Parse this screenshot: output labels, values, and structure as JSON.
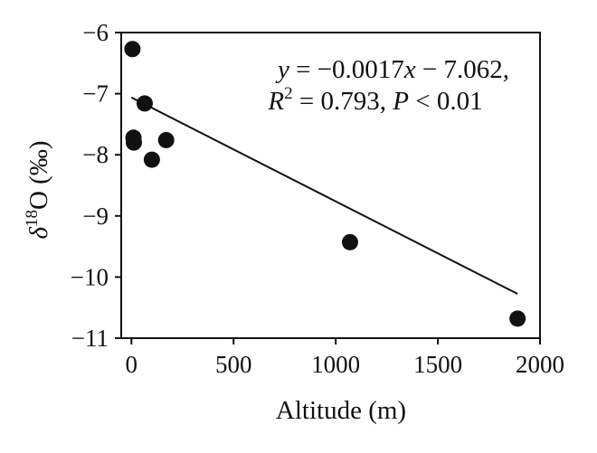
{
  "chart_data": {
    "type": "scatter",
    "xlabel": "Altitude (m)",
    "ylabel": {
      "prefix": "δ",
      "superscript": "18",
      "main": "O (‰)"
    },
    "xlim": [
      -50,
      2000
    ],
    "ylim": [
      -11,
      -6
    ],
    "xticks": [
      0,
      500,
      1000,
      1500,
      2000
    ],
    "yticks": [
      -11,
      -10,
      -9,
      -8,
      -7,
      -6
    ],
    "grid": false,
    "legend": "none",
    "points": [
      {
        "x": 5,
        "y": -6.27
      },
      {
        "x": 10,
        "y": -7.72
      },
      {
        "x": 12,
        "y": -7.8
      },
      {
        "x": 65,
        "y": -7.16
      },
      {
        "x": 100,
        "y": -8.08
      },
      {
        "x": 170,
        "y": -7.76
      },
      {
        "x": 1070,
        "y": -9.43
      },
      {
        "x": 1890,
        "y": -10.68
      }
    ],
    "fit_line": {
      "slope": -0.0017,
      "intercept": -7.062,
      "x_range": [
        0,
        1890
      ]
    },
    "annotation": {
      "line1_y": "y",
      "line1_rest": " = −0.0017",
      "line1_x": "x",
      "line1_end": " − 7.062,",
      "line2_R": "R",
      "line2_sup": "2",
      "line2_mid": " = 0.793, ",
      "line2_P": "P",
      "line2_end": " < 0.01"
    },
    "colors": {
      "marker": "#111111",
      "line": "#111111",
      "axis": "#111111"
    }
  }
}
